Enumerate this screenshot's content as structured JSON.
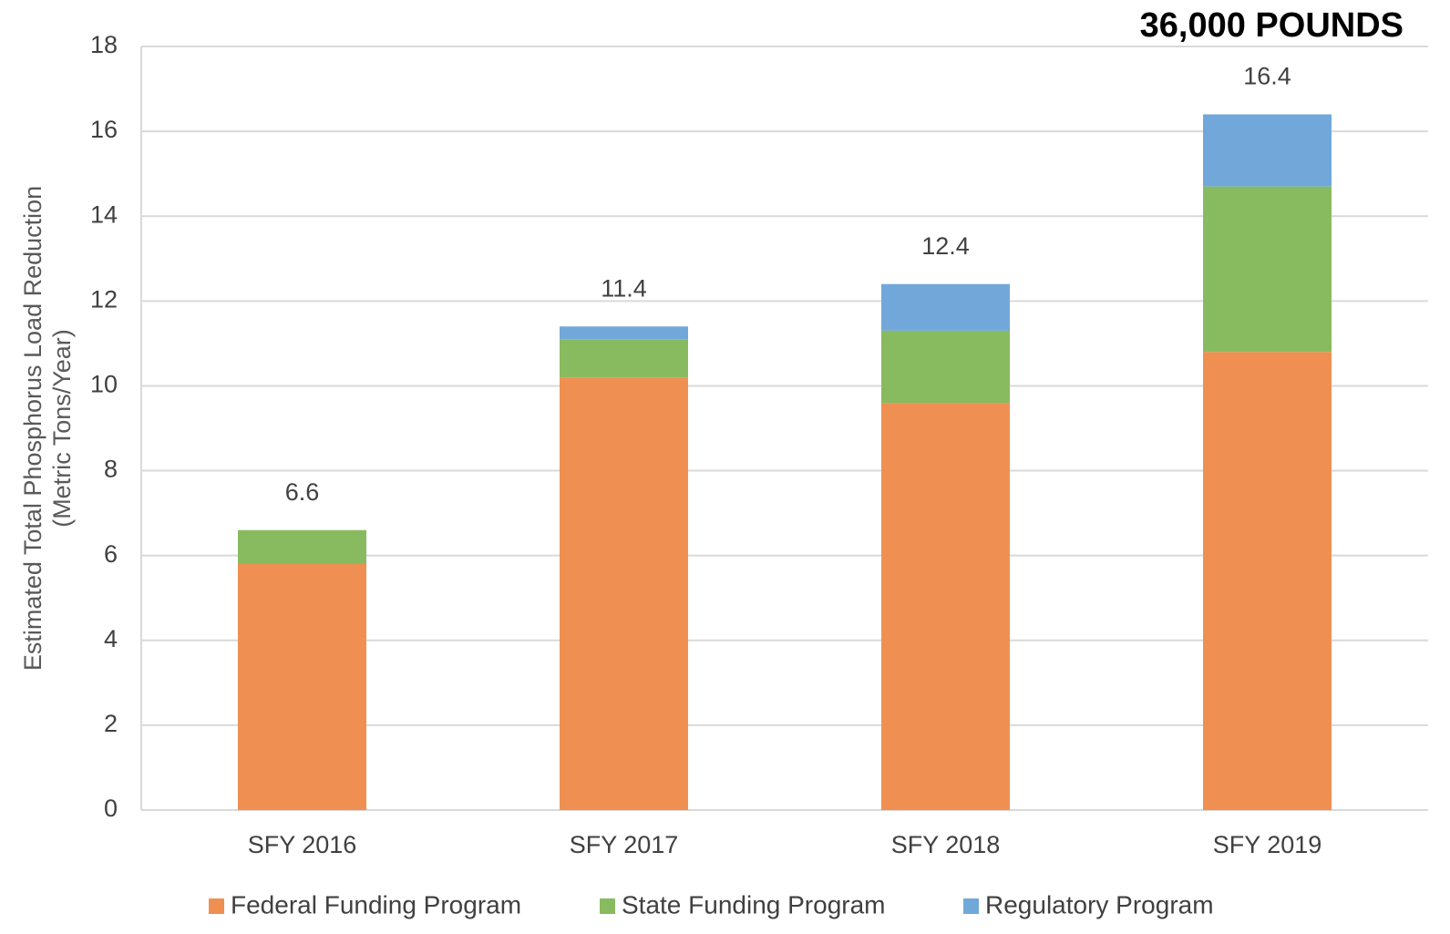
{
  "chart_data": {
    "type": "stacked_bar",
    "annotation": "36,000 POUNDS",
    "ylabel": [
      "Estimated Total Phosphorus Load Reduction",
      "(Metric Tons/Year)"
    ],
    "categories": [
      "SFY 2016",
      "SFY 2017",
      "SFY 2018",
      "SFY 2019"
    ],
    "series": [
      {
        "name": "Federal Funding Program",
        "color": "#ef9052",
        "values": [
          5.8,
          10.2,
          9.6,
          10.8
        ]
      },
      {
        "name": "State Funding Program",
        "color": "#88bb5f",
        "values": [
          0.8,
          0.9,
          1.7,
          3.9
        ]
      },
      {
        "name": "Regulatory Program",
        "color": "#72a8d9",
        "values": [
          0,
          0.3,
          1.1,
          1.7
        ]
      }
    ],
    "totals": [
      6.6,
      11.4,
      12.4,
      16.4
    ],
    "ylim": [
      0,
      18
    ],
    "yticks": [
      0,
      2,
      4,
      6,
      8,
      10,
      12,
      14,
      16,
      18
    ],
    "grid": true
  }
}
